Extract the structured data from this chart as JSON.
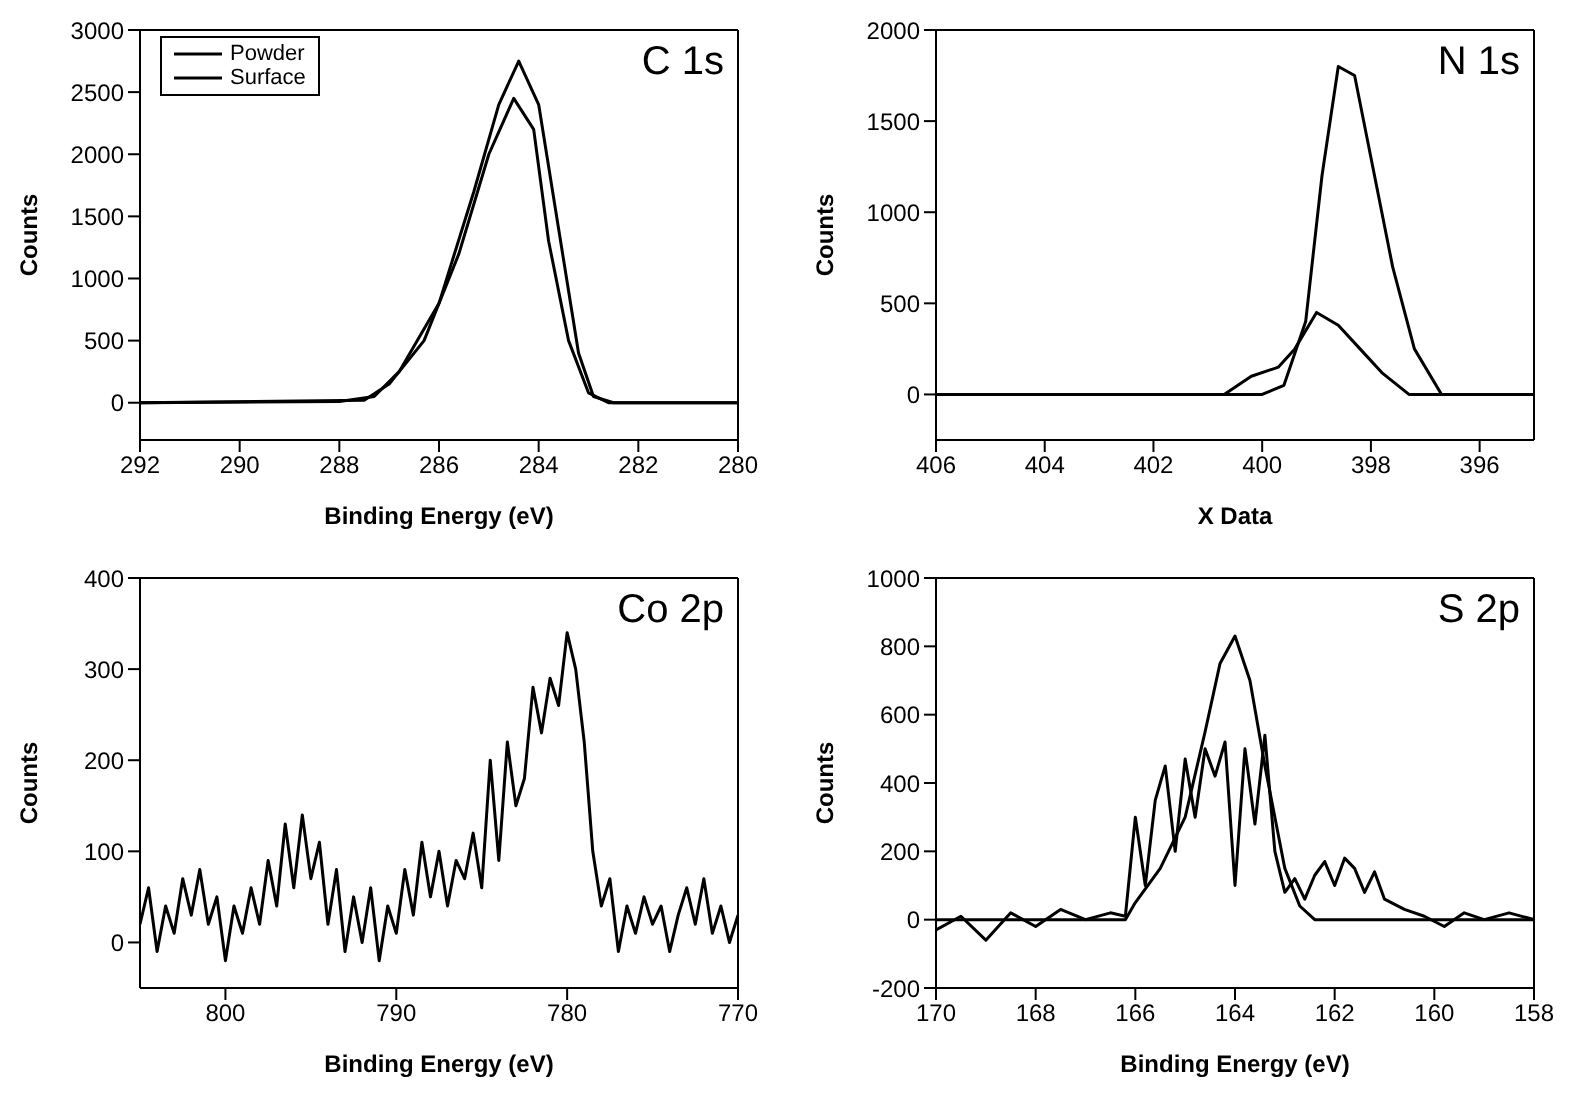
{
  "chart_data": [
    {
      "type": "line",
      "title": "C 1s",
      "xlabel": "Binding Energy (eV)",
      "ylabel": "Counts",
      "xlim": [
        292,
        280
      ],
      "xticks": [
        292,
        290,
        288,
        286,
        284,
        282,
        280
      ],
      "ylim": [
        -300,
        3000
      ],
      "yticks": [
        0,
        500,
        1000,
        1500,
        2000,
        2500,
        3000
      ],
      "legend": "top left",
      "marker": "none",
      "series": [
        {
          "name": "Powder",
          "color": "#000000",
          "x": [
            292,
            288,
            287.3,
            286.8,
            286,
            285.3,
            284.8,
            284.4,
            284,
            283.6,
            283.2,
            282.9,
            282.5,
            280
          ],
          "values": [
            0,
            10,
            50,
            250,
            800,
            1700,
            2400,
            2750,
            2400,
            1400,
            400,
            50,
            0,
            0
          ]
        },
        {
          "name": "Surface",
          "color": "#000000",
          "x": [
            292,
            287.5,
            287,
            286.3,
            285.6,
            285,
            284.5,
            284.1,
            283.8,
            283.4,
            283,
            282.6,
            280
          ],
          "values": [
            0,
            20,
            150,
            500,
            1200,
            2000,
            2450,
            2200,
            1300,
            500,
            80,
            0,
            0
          ]
        }
      ]
    },
    {
      "type": "line",
      "title": "N 1s",
      "xlabel": "X Data",
      "ylabel": "Counts",
      "xlim": [
        406,
        395
      ],
      "xticks": [
        406,
        404,
        402,
        400,
        398,
        396
      ],
      "ylim": [
        -250,
        2000
      ],
      "yticks": [
        0,
        500,
        1000,
        1500,
        2000
      ],
      "marker": "none",
      "series": [
        {
          "color": "#000000",
          "x": [
            406,
            400,
            399.6,
            399.2,
            398.9,
            398.6,
            398.3,
            398,
            397.6,
            397.2,
            396.7,
            395
          ],
          "values": [
            0,
            0,
            50,
            400,
            1200,
            1800,
            1750,
            1300,
            700,
            250,
            0,
            0
          ]
        },
        {
          "color": "#000000",
          "x": [
            406,
            400.7,
            400.2,
            399.7,
            399.4,
            399,
            398.6,
            398.2,
            397.8,
            397.3,
            395
          ],
          "values": [
            0,
            0,
            100,
            150,
            250,
            450,
            380,
            250,
            120,
            0,
            0
          ]
        }
      ]
    },
    {
      "type": "line",
      "title": "Co 2p",
      "xlabel": "Binding Energy (eV)",
      "ylabel": "Counts",
      "xlim": [
        805,
        770
      ],
      "xticks": [
        800,
        790,
        780,
        770
      ],
      "ylim": [
        -50,
        400
      ],
      "yticks": [
        0,
        100,
        200,
        300,
        400
      ],
      "marker": "none",
      "series": [
        {
          "color": "#000000",
          "x": [
            805,
            804.5,
            804,
            803.5,
            803,
            802.5,
            802,
            801.5,
            801,
            800.5,
            800,
            799.5,
            799,
            798.5,
            798,
            797.5,
            797,
            796.5,
            796,
            795.5,
            795,
            794.5,
            794,
            793.5,
            793,
            792.5,
            792,
            791.5,
            791,
            790.5,
            790,
            789.5,
            789,
            788.5,
            788,
            787.5,
            787,
            786.5,
            786,
            785.5,
            785,
            784.5,
            784,
            783.5,
            783,
            782.5,
            782,
            781.5,
            781,
            780.5,
            780,
            779.5,
            779,
            778.5,
            778,
            777.5,
            777,
            776.5,
            776,
            775.5,
            775,
            774.5,
            774,
            773.5,
            773,
            772.5,
            772,
            771.5,
            771,
            770.5,
            770
          ],
          "values": [
            20,
            60,
            -10,
            40,
            10,
            70,
            30,
            80,
            20,
            50,
            -20,
            40,
            10,
            60,
            20,
            90,
            40,
            130,
            60,
            140,
            70,
            110,
            20,
            80,
            -10,
            50,
            0,
            60,
            -20,
            40,
            10,
            80,
            30,
            110,
            50,
            100,
            40,
            90,
            70,
            120,
            60,
            200,
            90,
            220,
            150,
            180,
            280,
            230,
            290,
            260,
            340,
            300,
            220,
            100,
            40,
            70,
            -10,
            40,
            10,
            50,
            20,
            40,
            -10,
            30,
            60,
            20,
            70,
            10,
            40,
            0,
            30
          ]
        }
      ]
    },
    {
      "type": "line",
      "title": "S 2p",
      "xlabel": "Binding Energy (eV)",
      "ylabel": "Counts",
      "xlim": [
        170,
        158
      ],
      "xticks": [
        170,
        168,
        166,
        164,
        162,
        160,
        158
      ],
      "ylim": [
        -200,
        1000
      ],
      "yticks": [
        -200,
        0,
        200,
        400,
        600,
        800,
        1000
      ],
      "marker": "none",
      "series": [
        {
          "color": "#000000",
          "x": [
            170,
            166.2,
            166,
            165.5,
            165,
            164.6,
            164.3,
            164,
            163.7,
            163.4,
            163,
            162.7,
            162.4,
            158
          ],
          "values": [
            0,
            0,
            50,
            150,
            300,
            550,
            750,
            830,
            700,
            450,
            150,
            40,
            0,
            0
          ]
        },
        {
          "color": "#000000",
          "x": [
            170,
            169.5,
            169,
            168.5,
            168,
            167.5,
            167,
            166.5,
            166.2,
            166,
            165.8,
            165.6,
            165.4,
            165.2,
            165,
            164.8,
            164.6,
            164.4,
            164.2,
            164,
            163.8,
            163.6,
            163.4,
            163.2,
            163,
            162.8,
            162.6,
            162.4,
            162.2,
            162,
            161.8,
            161.6,
            161.4,
            161.2,
            161,
            160.6,
            160.2,
            159.8,
            159.4,
            159,
            158.5,
            158
          ],
          "values": [
            -30,
            10,
            -60,
            20,
            -20,
            30,
            0,
            20,
            10,
            300,
            100,
            350,
            450,
            200,
            470,
            300,
            500,
            420,
            520,
            100,
            500,
            280,
            540,
            200,
            80,
            120,
            60,
            130,
            170,
            100,
            180,
            150,
            80,
            140,
            60,
            30,
            10,
            -20,
            20,
            0,
            20,
            0
          ]
        }
      ]
    }
  ]
}
